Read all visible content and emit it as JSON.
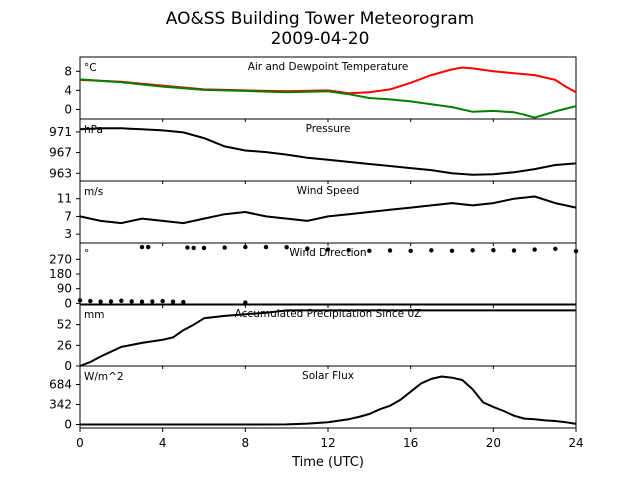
{
  "figure": {
    "title_line1": "AO&SS Building Tower Meteorogram",
    "title_line2": "2009-04-20",
    "xlabel": "Time (UTC)"
  },
  "chart_data": [
    {
      "type": "line",
      "title": "Air and Dewpoint Temperature",
      "unit": "°C",
      "ylim": [
        -2,
        11
      ],
      "yticks": [
        0,
        4,
        8
      ],
      "x_range": [
        0,
        24
      ],
      "series": [
        {
          "color": "#ff0000",
          "x": [
            0,
            2,
            4,
            6,
            8,
            10,
            12,
            13,
            14,
            15,
            16,
            17,
            18,
            18.5,
            19,
            20,
            21,
            22,
            23,
            23.5,
            24
          ],
          "y": [
            6.2,
            5.8,
            5.0,
            4.2,
            4.0,
            3.8,
            4.0,
            3.4,
            3.6,
            4.2,
            5.6,
            7.2,
            8.4,
            8.8,
            8.6,
            8.0,
            7.6,
            7.2,
            6.2,
            4.8,
            3.6
          ]
        },
        {
          "color": "#008000",
          "x": [
            0,
            2,
            4,
            6,
            8,
            10,
            12,
            13,
            14,
            15,
            16,
            17,
            18,
            19,
            20,
            21,
            21.5,
            22,
            23,
            24
          ],
          "y": [
            6.3,
            5.7,
            4.8,
            4.1,
            3.9,
            3.6,
            3.8,
            3.2,
            2.4,
            2.1,
            1.7,
            1.1,
            0.5,
            -0.5,
            -0.3,
            -0.6,
            -1.1,
            -1.7,
            -0.4,
            0.7
          ]
        }
      ]
    },
    {
      "type": "line",
      "title": "Pressure",
      "unit": "hPa",
      "ylim": [
        961.5,
        973.5
      ],
      "yticks": [
        963,
        967,
        971
      ],
      "x_range": [
        0,
        24
      ],
      "series": [
        {
          "color": "#000000",
          "x": [
            0,
            1,
            2,
            3,
            4,
            5,
            6,
            7,
            8,
            9,
            10,
            11,
            12,
            13,
            14,
            15,
            16,
            17,
            18,
            19,
            20,
            21,
            22,
            23,
            24
          ],
          "y": [
            971.5,
            971.7,
            971.7,
            971.5,
            971.3,
            970.9,
            969.8,
            968.2,
            967.4,
            967.1,
            966.6,
            966.0,
            965.6,
            965.2,
            964.8,
            964.4,
            964.0,
            963.6,
            963.0,
            962.7,
            962.8,
            963.2,
            963.8,
            964.6,
            964.9
          ]
        }
      ]
    },
    {
      "type": "line",
      "title": "Wind Speed",
      "unit": "m/s",
      "ylim": [
        1,
        15
      ],
      "yticks": [
        3,
        7,
        11
      ],
      "x_range": [
        0,
        24
      ],
      "series": [
        {
          "color": "#000000",
          "x": [
            0,
            1,
            2,
            3,
            4,
            5,
            6,
            7,
            8,
            9,
            10,
            11,
            12,
            13,
            14,
            15,
            16,
            17,
            18,
            19,
            20,
            21,
            22,
            23,
            24
          ],
          "y": [
            7,
            6,
            5.5,
            6.5,
            6,
            5.5,
            6.5,
            7.5,
            8,
            7,
            6.5,
            6,
            7,
            7.5,
            8,
            8.5,
            9,
            9.5,
            10,
            9.5,
            10,
            11,
            11.5,
            10,
            9
          ]
        }
      ]
    },
    {
      "type": "scatter",
      "title": "Wind Direction",
      "unit": "°",
      "ylim": [
        -10,
        370
      ],
      "yticks": [
        0,
        90,
        180,
        270
      ],
      "x_range": [
        0,
        24
      ],
      "series": [
        {
          "color": "#000000",
          "x": [
            0,
            0.5,
            1,
            1.5,
            2,
            2.5,
            3,
            3.5,
            4,
            4.5,
            5,
            3.0,
            3.3,
            5.2,
            5.5,
            6,
            7,
            8,
            9,
            10,
            11,
            12,
            13,
            14,
            15,
            16,
            17,
            18,
            19,
            20,
            21,
            22,
            23,
            24,
            8.0
          ],
          "y": [
            18,
            14,
            10,
            12,
            16,
            12,
            10,
            12,
            14,
            10,
            8,
            345,
            345,
            342,
            340,
            340,
            342,
            345,
            345,
            344,
            336,
            330,
            326,
            322,
            324,
            322,
            325,
            322,
            325,
            326,
            324,
            330,
            334,
            320,
            5
          ]
        }
      ]
    },
    {
      "type": "line",
      "title": "Accumulated Precipitation Since 0Z",
      "unit": "mm",
      "ylim": [
        0,
        78
      ],
      "yticks": [
        0,
        26,
        52
      ],
      "x_range": [
        0,
        24
      ],
      "series": [
        {
          "color": "#000000",
          "x": [
            0,
            0.5,
            1,
            1.5,
            2,
            3,
            4,
            4.5,
            5,
            5.5,
            6,
            7,
            8,
            9,
            10,
            24
          ],
          "y": [
            0,
            5,
            12,
            18,
            24,
            29,
            33,
            36,
            45,
            52,
            60,
            63,
            65,
            67,
            70,
            70
          ]
        }
      ]
    },
    {
      "type": "line",
      "title": "Solar Flux",
      "unit": "W/m^2",
      "ylim": [
        -60,
        1000
      ],
      "yticks": [
        0,
        342,
        684
      ],
      "x_range": [
        0,
        24
      ],
      "series": [
        {
          "color": "#000000",
          "x": [
            0,
            8,
            10,
            11,
            12,
            13,
            13.5,
            14,
            14.5,
            15,
            15.5,
            16,
            16.5,
            17,
            17.5,
            18,
            18.5,
            19,
            19.5,
            20,
            20.5,
            21,
            21.5,
            22,
            22.5,
            23,
            23.5,
            24
          ],
          "y": [
            0,
            0,
            2,
            15,
            40,
            90,
            130,
            180,
            260,
            320,
            420,
            560,
            700,
            780,
            820,
            800,
            760,
            600,
            380,
            300,
            230,
            150,
            100,
            90,
            70,
            60,
            40,
            10
          ]
        }
      ]
    }
  ],
  "xticks": [
    0,
    4,
    8,
    12,
    16,
    20,
    24
  ]
}
